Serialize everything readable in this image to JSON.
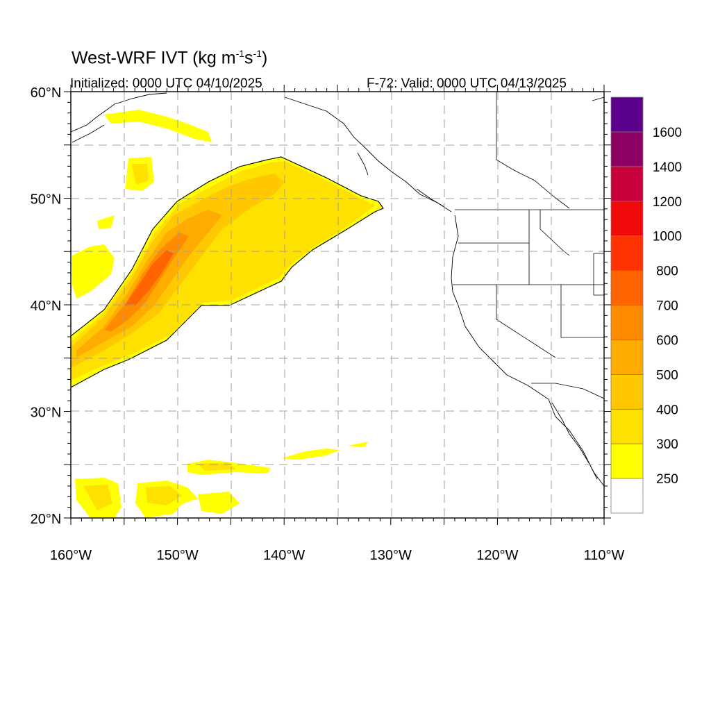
{
  "title": {
    "prefix": "West-WRF IVT (kg m",
    "exp1": "-1",
    "mid": "s",
    "exp2": "-1",
    "suffix": ")"
  },
  "initialized": "Initialized: 0000 UTC 04/10/2025",
  "valid": "F-72: Valid: 0000 UTC 04/13/2025",
  "map": {
    "lon_range": [
      -160,
      -110
    ],
    "lat_range": [
      20,
      60
    ],
    "lon_labels": [
      "160°W",
      "150°W",
      "140°W",
      "130°W",
      "120°W",
      "110°W"
    ],
    "lat_labels": [
      "60°N",
      "50°N",
      "40°N",
      "30°N",
      "20°N"
    ],
    "gridlines": "dashed",
    "grid_spacing_deg": 5
  },
  "colorbar": {
    "levels": [
      250,
      300,
      400,
      500,
      600,
      700,
      800,
      1000,
      1200,
      1400,
      1600
    ],
    "labels": [
      "250",
      "300",
      "400",
      "500",
      "600",
      "700",
      "800",
      "1000",
      "1200",
      "1400",
      "1600"
    ],
    "colors": [
      "#ffffff",
      "#ffff00",
      "#ffe100",
      "#ffc800",
      "#ffab00",
      "#ff8c00",
      "#ff6400",
      "#ff3200",
      "#f00a0a",
      "#c8003c",
      "#8c0064",
      "#5a008c"
    ]
  },
  "colors": {
    "coastline": "#000000",
    "state_border": "#000000",
    "grid": "#a0a0a0"
  }
}
